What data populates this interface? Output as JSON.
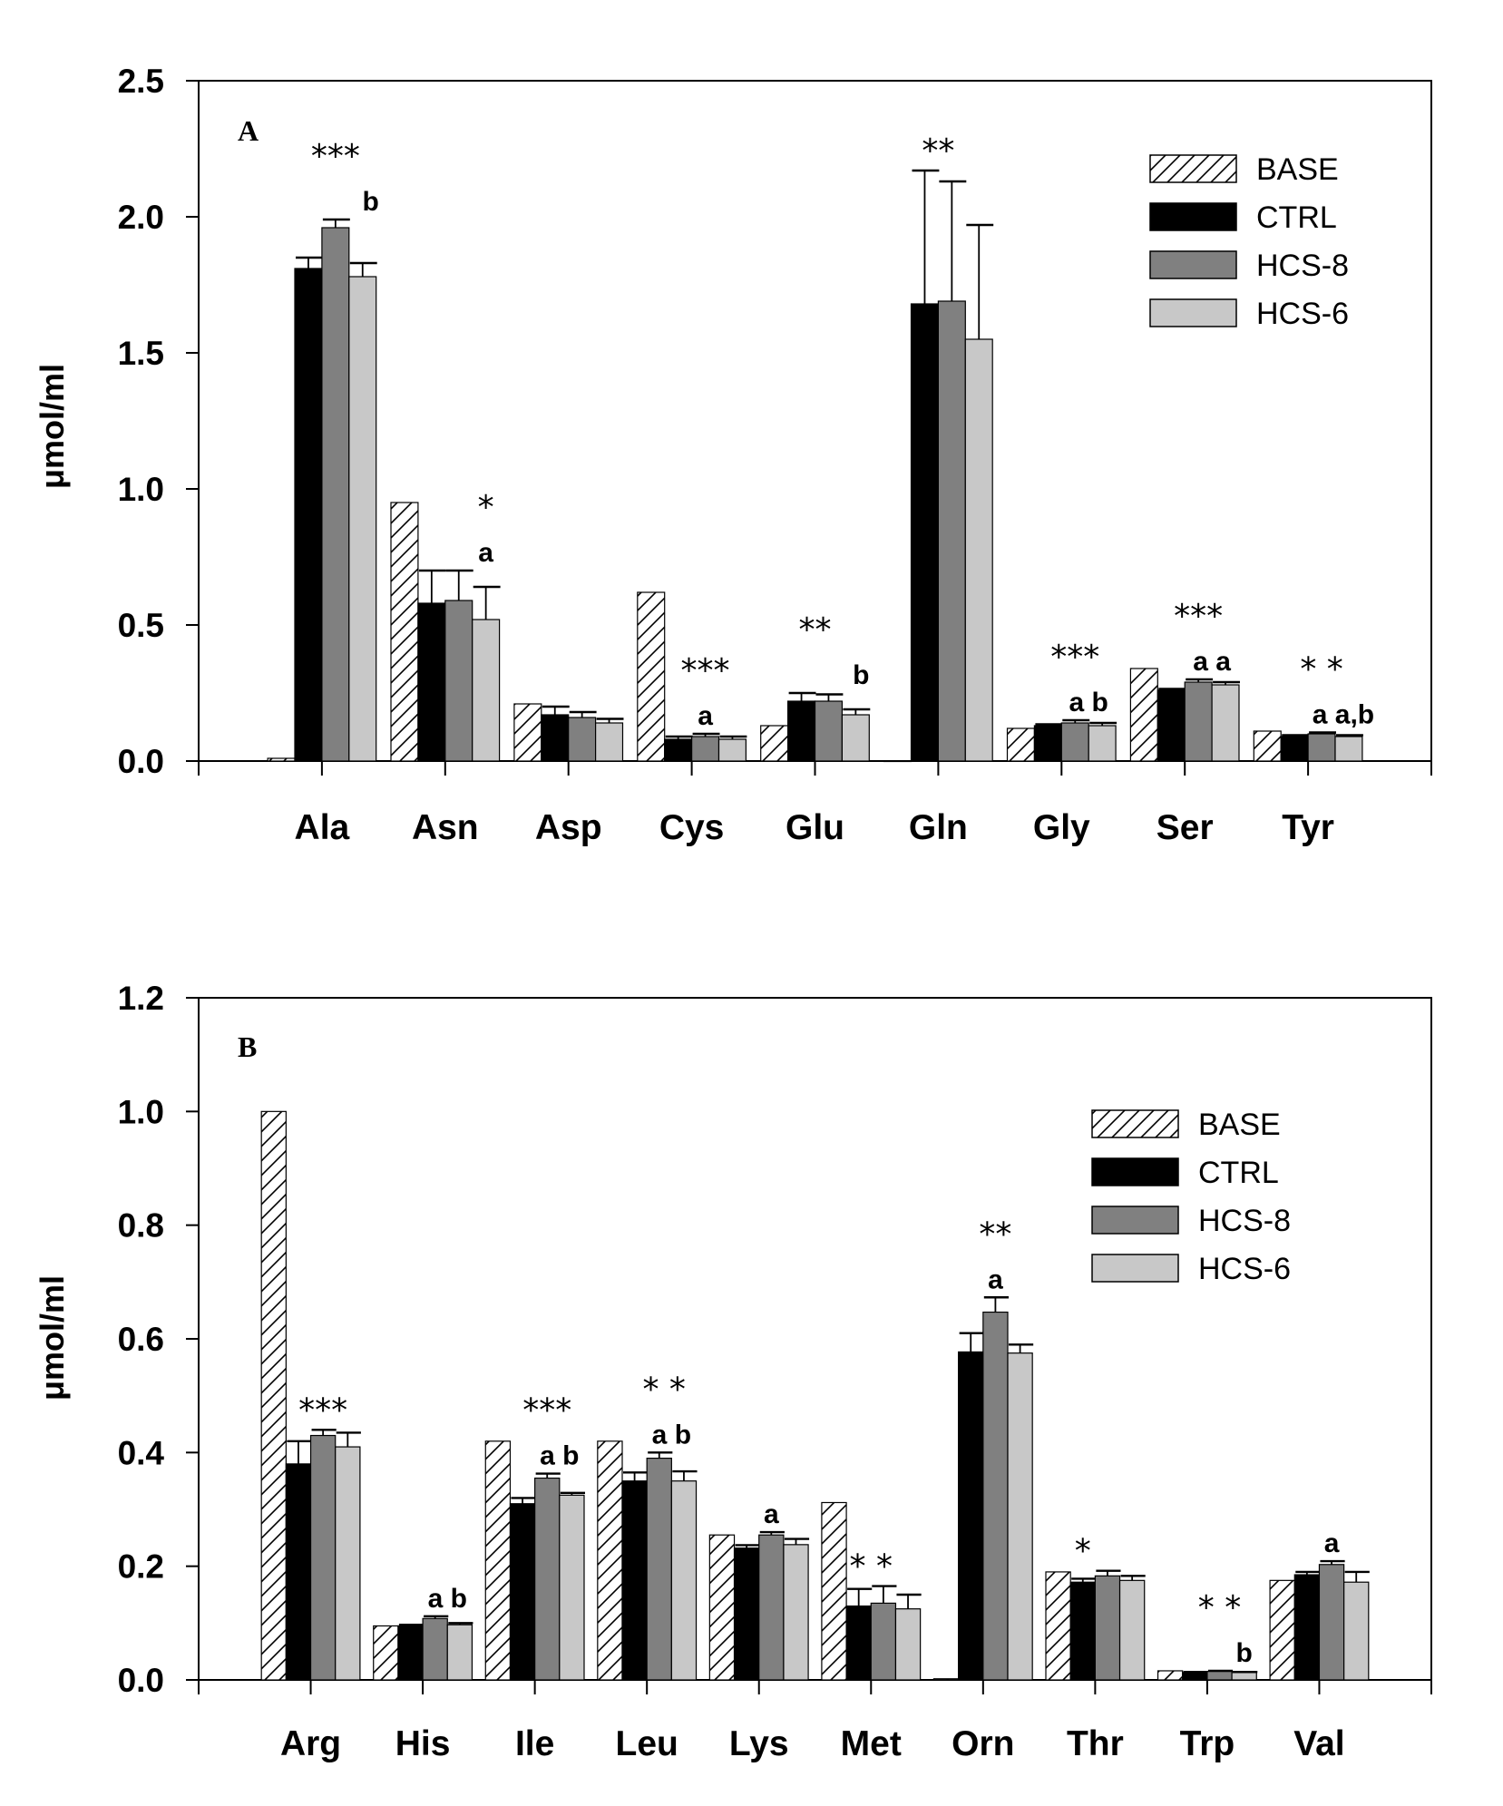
{
  "colors": {
    "BASE": "#ffffff",
    "CTRL": "#000000",
    "HCS-8": "#808080",
    "HCS-6": "#c8c8c8"
  },
  "chart_data": [
    {
      "type": "bar",
      "panel_label": "A",
      "ylabel": "μmol/ml",
      "ylim": [
        0,
        2.5
      ],
      "yticks": [
        "0.0",
        "0.5",
        "1.0",
        "1.5",
        "2.0",
        "2.5"
      ],
      "legend_position": "top-right",
      "grid": false,
      "categories": [
        "Ala",
        "Asn",
        "Asp",
        "Cys",
        "Glu",
        "Gln",
        "Gly",
        "Ser",
        "Tyr"
      ],
      "series": [
        {
          "name": "BASE",
          "pattern": "hatched",
          "values": [
            0.01,
            0.95,
            0.21,
            0.62,
            0.13,
            0.0,
            0.12,
            0.34,
            0.11
          ],
          "errors": [
            0,
            0,
            0,
            0,
            0,
            0,
            0,
            0,
            0
          ]
        },
        {
          "name": "CTRL",
          "values": [
            1.81,
            0.58,
            0.17,
            0.08,
            0.22,
            1.68,
            0.13,
            0.26,
            0.09
          ],
          "errors": [
            0.04,
            0.12,
            0.03,
            0.01,
            0.03,
            0.49,
            0.005,
            0.005,
            0.005
          ]
        },
        {
          "name": "HCS-8",
          "values": [
            1.96,
            0.59,
            0.16,
            0.09,
            0.22,
            1.69,
            0.14,
            0.29,
            0.1
          ],
          "errors": [
            0.03,
            0.11,
            0.02,
            0.01,
            0.025,
            0.44,
            0.01,
            0.01,
            0.005
          ]
        },
        {
          "name": "HCS-6",
          "values": [
            1.78,
            0.52,
            0.14,
            0.08,
            0.17,
            1.55,
            0.13,
            0.28,
            0.09
          ],
          "errors": [
            0.05,
            0.12,
            0.015,
            0.01,
            0.02,
            0.42,
            0.01,
            0.01,
            0.005
          ]
        }
      ],
      "annotations": [
        {
          "category": "Ala",
          "text": "***",
          "at_bar": 2,
          "row": 1
        },
        {
          "category": "Ala",
          "text": "b",
          "at_bar": 3.3,
          "row": 0
        },
        {
          "category": "Asn",
          "text": "*",
          "at_bar": 3,
          "row": 1
        },
        {
          "category": "Asn",
          "text": "a",
          "at_bar": 3,
          "row": 0
        },
        {
          "category": "Cys",
          "text": "***",
          "at_bar": 2,
          "row": 1
        },
        {
          "category": "Cys",
          "text": "a",
          "at_bar": 2,
          "row": 0
        },
        {
          "category": "Glu",
          "text": "**",
          "at_bar": 1.5,
          "row": 1
        },
        {
          "category": "Glu",
          "text": "b",
          "at_bar": 3.2,
          "row": 0
        },
        {
          "category": "Gln",
          "text": "**",
          "at_bar": 1.5,
          "row": 0
        },
        {
          "category": "Gly",
          "text": "***",
          "at_bar": 2,
          "row": 1
        },
        {
          "category": "Gly",
          "text": "a b",
          "at_bar": 2.5,
          "row": 0
        },
        {
          "category": "Ser",
          "text": "***",
          "at_bar": 2,
          "row": 1
        },
        {
          "category": "Ser",
          "text": "a a",
          "at_bar": 2.5,
          "row": 0
        },
        {
          "category": "Tyr",
          "text": "* *",
          "at_bar": 2,
          "row": 1
        },
        {
          "category": "Tyr",
          "text": "a a,b",
          "at_bar": 2.8,
          "row": 0
        }
      ]
    },
    {
      "type": "bar",
      "panel_label": "B",
      "ylabel": "μmol/ml",
      "ylim": [
        0,
        1.2
      ],
      "yticks": [
        "0.0",
        "0.2",
        "0.4",
        "0.6",
        "0.8",
        "1.0",
        "1.2"
      ],
      "legend_position": "top-right",
      "grid": false,
      "categories": [
        "Arg",
        "His",
        "Ile",
        "Leu",
        "Lys",
        "Met",
        "Orn",
        "Thr",
        "Trp",
        "Val"
      ],
      "series": [
        {
          "name": "BASE",
          "pattern": "hatched",
          "values": [
            1.0,
            0.095,
            0.42,
            0.42,
            0.255,
            0.312,
            0.002,
            0.19,
            0.016,
            0.175
          ],
          "errors": [
            0,
            0,
            0,
            0,
            0,
            0,
            0,
            0,
            0,
            0
          ]
        },
        {
          "name": "CTRL",
          "values": [
            0.38,
            0.095,
            0.31,
            0.35,
            0.232,
            0.13,
            0.577,
            0.172,
            0.013,
            0.185
          ],
          "errors": [
            0.04,
            0.002,
            0.01,
            0.015,
            0.005,
            0.03,
            0.033,
            0.006,
            0.001,
            0.005
          ]
        },
        {
          "name": "HCS-8",
          "values": [
            0.43,
            0.108,
            0.355,
            0.39,
            0.255,
            0.135,
            0.647,
            0.183,
            0.015,
            0.203
          ],
          "errors": [
            0.01,
            0.004,
            0.008,
            0.01,
            0.005,
            0.03,
            0.026,
            0.009,
            0.001,
            0.006
          ]
        },
        {
          "name": "HCS-6",
          "values": [
            0.41,
            0.097,
            0.325,
            0.35,
            0.238,
            0.125,
            0.575,
            0.175,
            0.013,
            0.172
          ],
          "errors": [
            0.025,
            0.003,
            0.004,
            0.017,
            0.01,
            0.025,
            0.015,
            0.008,
            0.001,
            0.018
          ]
        }
      ],
      "annotations": [
        {
          "category": "Arg",
          "text": "***",
          "at_bar": 2,
          "row": 0
        },
        {
          "category": "His",
          "text": "a b",
          "at_bar": 2.5,
          "row": 0
        },
        {
          "category": "Ile",
          "text": "***",
          "at_bar": 2,
          "row": 1
        },
        {
          "category": "Ile",
          "text": "a b",
          "at_bar": 2.5,
          "row": 0
        },
        {
          "category": "Leu",
          "text": "* *",
          "at_bar": 2.2,
          "row": 1
        },
        {
          "category": "Leu",
          "text": "a b",
          "at_bar": 2.5,
          "row": 0
        },
        {
          "category": "Lys",
          "text": "a",
          "at_bar": 2,
          "row": 0
        },
        {
          "category": "Met",
          "text": "* *",
          "at_bar": 1.5,
          "row": 0
        },
        {
          "category": "Orn",
          "text": "**",
          "at_bar": 2,
          "row": 1
        },
        {
          "category": "Orn",
          "text": "a",
          "at_bar": 2,
          "row": 0
        },
        {
          "category": "Thr",
          "text": "*",
          "at_bar": 1,
          "row": 0
        },
        {
          "category": "Trp",
          "text": "* *",
          "at_bar": 2,
          "row": 1
        },
        {
          "category": "Trp",
          "text": "b",
          "at_bar": 3,
          "row": 0
        },
        {
          "category": "Val",
          "text": "a",
          "at_bar": 2,
          "row": 0
        }
      ]
    }
  ]
}
